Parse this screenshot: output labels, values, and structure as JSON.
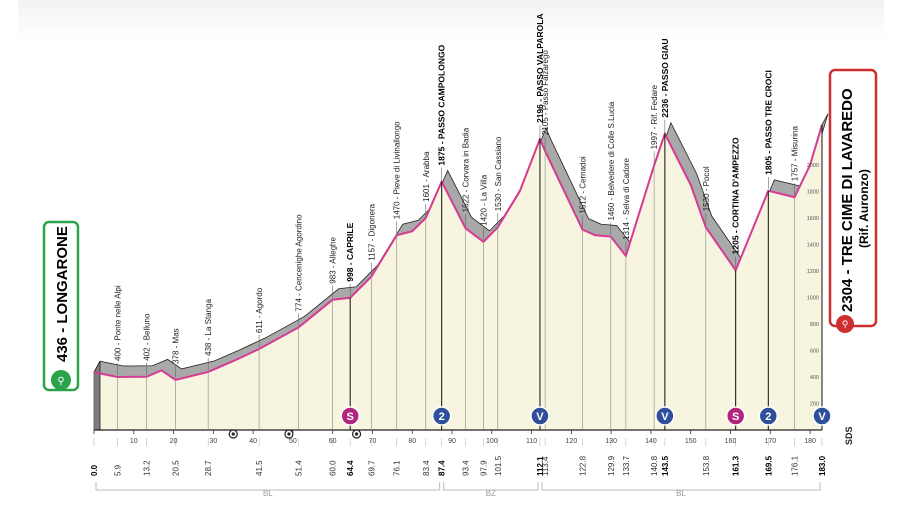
{
  "start": {
    "altitude": "436",
    "name": "LONGARONE"
  },
  "finish": {
    "altitude": "2304",
    "name": "TRE CIME DI LAVAREDO",
    "sub": "(Rif. Auronzo)"
  },
  "brand": "SDS",
  "provinces": [
    {
      "label": "BL",
      "from": 0,
      "to": 87.4
    },
    {
      "label": "BZ",
      "from": 87.4,
      "to": 112.1
    },
    {
      "label": "BL",
      "from": 112.1,
      "to": 183
    }
  ],
  "colors": {
    "profile_fill": "#f7f5df",
    "profile_line": "#d63a93",
    "mountain": "#a9a9a9",
    "start_green": "#2aa34a",
    "finish_red": "#cc2f2f",
    "blue": "#2f4f9a",
    "magenta": "#b3247f"
  },
  "chart_data": {
    "type": "area",
    "title": "",
    "xlabel": "",
    "ylabel": "",
    "xlim": [
      0,
      183
    ],
    "ylim": [
      0,
      2500
    ],
    "y_ticks": [
      200,
      400,
      600,
      800,
      1000,
      1200,
      1400,
      1600,
      1800,
      2000
    ],
    "x_ticks": [
      0,
      10,
      20,
      30,
      40,
      50,
      60,
      70,
      80,
      90,
      100,
      110,
      120,
      130,
      140,
      150,
      160,
      170,
      180
    ],
    "profile": [
      [
        0,
        436
      ],
      [
        5.9,
        400
      ],
      [
        13.2,
        402
      ],
      [
        17,
        450
      ],
      [
        20.5,
        378
      ],
      [
        28.7,
        438
      ],
      [
        35,
        520
      ],
      [
        41.5,
        611
      ],
      [
        51.4,
        774
      ],
      [
        60,
        983
      ],
      [
        64.4,
        998
      ],
      [
        69.7,
        1157
      ],
      [
        76.1,
        1470
      ],
      [
        80,
        1500
      ],
      [
        83.4,
        1601
      ],
      [
        87.4,
        1875
      ],
      [
        93.4,
        1522
      ],
      [
        97.9,
        1420
      ],
      [
        101.5,
        1530
      ],
      [
        107,
        1800
      ],
      [
        112.1,
        2196
      ],
      [
        113.4,
        2105
      ],
      [
        122.8,
        1512
      ],
      [
        126,
        1470
      ],
      [
        129.9,
        1460
      ],
      [
        133.7,
        1314
      ],
      [
        140.8,
        1997
      ],
      [
        143.5,
        2236
      ],
      [
        150,
        1850
      ],
      [
        153.8,
        1530
      ],
      [
        161.3,
        1205
      ],
      [
        169.5,
        1805
      ],
      [
        176.1,
        1757
      ],
      [
        180,
        2000
      ],
      [
        183,
        2304
      ]
    ],
    "km_labels": [
      {
        "km": 0,
        "text": "0.0",
        "bold": true
      },
      {
        "km": 5.9,
        "text": "5.9"
      },
      {
        "km": 13.2,
        "text": "13.2"
      },
      {
        "km": 20.5,
        "text": "20.5"
      },
      {
        "km": 28.7,
        "text": "28.7"
      },
      {
        "km": 41.5,
        "text": "41.5"
      },
      {
        "km": 51.4,
        "text": "51.4"
      },
      {
        "km": 60.0,
        "text": "60.0"
      },
      {
        "km": 64.4,
        "text": "64.4",
        "bold": true
      },
      {
        "km": 69.7,
        "text": "69.7"
      },
      {
        "km": 76.1,
        "text": "76.1"
      },
      {
        "km": 83.4,
        "text": "83.4"
      },
      {
        "km": 87.4,
        "text": "87.4",
        "bold": true
      },
      {
        "km": 93.4,
        "text": "93.4"
      },
      {
        "km": 97.9,
        "text": "97.9"
      },
      {
        "km": 101.5,
        "text": "101.5"
      },
      {
        "km": 112.1,
        "text": "112.1",
        "bold": true
      },
      {
        "km": 113.4,
        "text": "113.4"
      },
      {
        "km": 122.8,
        "text": "122.8"
      },
      {
        "km": 129.9,
        "text": "129.9"
      },
      {
        "km": 133.7,
        "text": "133.7"
      },
      {
        "km": 140.8,
        "text": "140.8"
      },
      {
        "km": 143.5,
        "text": "143.5",
        "bold": true
      },
      {
        "km": 153.8,
        "text": "153.8"
      },
      {
        "km": 161.3,
        "text": "161.3",
        "bold": true
      },
      {
        "km": 169.5,
        "text": "169.5",
        "bold": true
      },
      {
        "km": 176.1,
        "text": "176.1"
      },
      {
        "km": 183,
        "text": "183.0",
        "bold": true
      }
    ],
    "locations": [
      {
        "km": 5.9,
        "alt": 400,
        "text": "400 - Ponte nelle Alpi"
      },
      {
        "km": 13.2,
        "alt": 402,
        "text": "402 - Belluno"
      },
      {
        "km": 20.5,
        "alt": 378,
        "text": "378 - Mas"
      },
      {
        "km": 28.7,
        "alt": 438,
        "text": "438 - La Stanga"
      },
      {
        "km": 41.5,
        "alt": 611,
        "text": "611 - Agordo"
      },
      {
        "km": 51.4,
        "alt": 774,
        "text": "774 - Cencenighe Agordino"
      },
      {
        "km": 60.0,
        "alt": 983,
        "text": "983 - Alleghe"
      },
      {
        "km": 64.4,
        "alt": 998,
        "text": "998 - CAPRILE",
        "bold": true
      },
      {
        "km": 69.7,
        "alt": 1157,
        "text": "1157 - Digonera"
      },
      {
        "km": 76.1,
        "alt": 1470,
        "text": "1470 - Pieve di Livinallongo"
      },
      {
        "km": 83.4,
        "alt": 1601,
        "text": "1601 - Arabba"
      },
      {
        "km": 87.4,
        "alt": 1875,
        "text": "1875 - PASSO CAMPOLONGO",
        "bold": true
      },
      {
        "km": 93.4,
        "alt": 1522,
        "text": "1522 - Corvara in Badia"
      },
      {
        "km": 97.9,
        "alt": 1420,
        "text": "1420 - La Villa"
      },
      {
        "km": 101.5,
        "alt": 1530,
        "text": "1530 - San Cassiano"
      },
      {
        "km": 112.1,
        "alt": 2196,
        "text": "2196 - PASSO VALPAROLA",
        "bold": true
      },
      {
        "km": 113.4,
        "alt": 2105,
        "text": "2105 - Passo Falzarego"
      },
      {
        "km": 122.8,
        "alt": 1512,
        "text": "1512 - Cernadoi"
      },
      {
        "km": 129.9,
        "alt": 1460,
        "text": "1460 - Belvedere di Colle S.Lucia"
      },
      {
        "km": 133.7,
        "alt": 1314,
        "text": "1314 - Selva di Cadore"
      },
      {
        "km": 140.8,
        "alt": 1997,
        "text": "1997 - Rif. Fedare"
      },
      {
        "km": 143.5,
        "alt": 2236,
        "text": "2236 - PASSO GIAU",
        "bold": true
      },
      {
        "km": 153.8,
        "alt": 1530,
        "text": "1530 - Pocol"
      },
      {
        "km": 161.3,
        "alt": 1205,
        "text": "1205 - CORTINA D'AMPEZZO",
        "bold": true
      },
      {
        "km": 169.5,
        "alt": 1805,
        "text": "1805 - PASSO TRE CROCI",
        "bold": true
      },
      {
        "km": 176.1,
        "alt": 1757,
        "text": "1757 - Misurina"
      }
    ],
    "markers": [
      {
        "km": 64.4,
        "type": "sprint",
        "symbol": "S"
      },
      {
        "km": 87.4,
        "type": "kom2",
        "symbol": "2"
      },
      {
        "km": 112.1,
        "type": "kom1",
        "symbol": "V"
      },
      {
        "km": 143.5,
        "type": "kom1",
        "symbol": "V"
      },
      {
        "km": 161.3,
        "type": "sprint",
        "symbol": "S"
      },
      {
        "km": 169.5,
        "type": "kom2",
        "symbol": "2"
      },
      {
        "km": 183,
        "type": "kom1",
        "symbol": "V"
      }
    ],
    "service_markers": [
      35,
      49,
      66
    ]
  }
}
